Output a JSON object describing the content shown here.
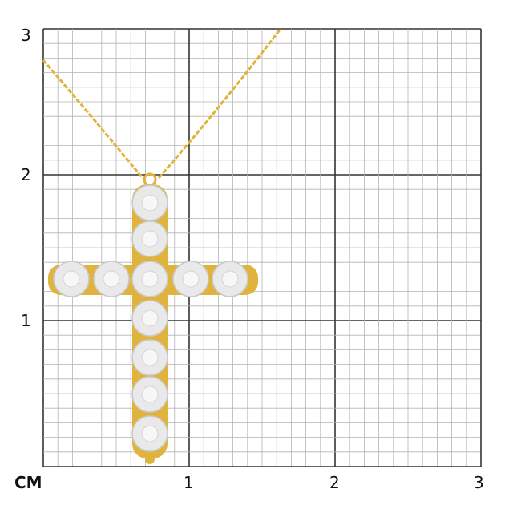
{
  "scale": {
    "unit_label": "CM",
    "x_ticks": [
      "1",
      "2",
      "3"
    ],
    "y_ticks": [
      "3",
      "2",
      "1"
    ],
    "range_cm": [
      0,
      3
    ],
    "minor_divisions_per_cm": 10
  },
  "product": {
    "type": "cross pendant necklace",
    "metal_color": "#e0b43c",
    "stone_color": "#e9e9ea",
    "vertical_stones": 7,
    "horizontal_stones": 5
  },
  "colors": {
    "minor_grid": "#b4b4b4",
    "major_grid": "#333333"
  }
}
